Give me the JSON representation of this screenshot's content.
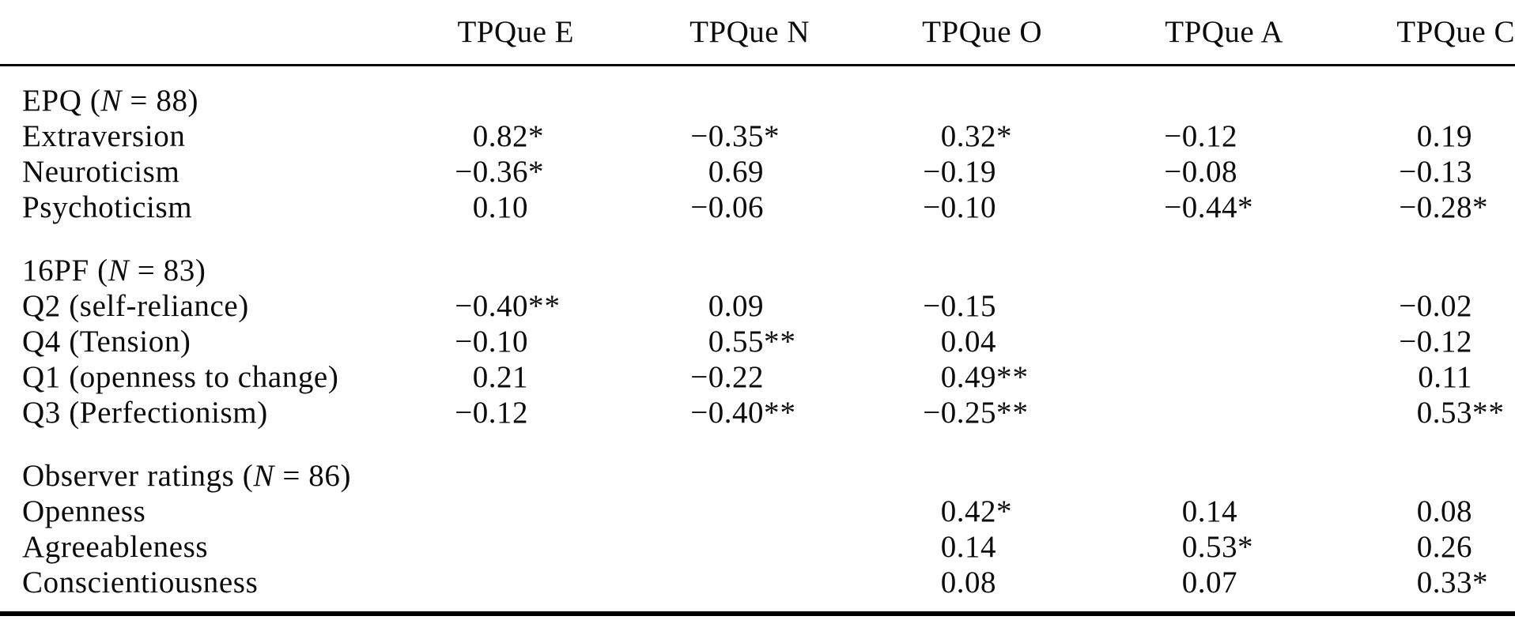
{
  "table": {
    "columns": [
      {
        "label": "TPQue E"
      },
      {
        "label": "TPQue N"
      },
      {
        "label": "TPQue O"
      },
      {
        "label": "TPQue A"
      },
      {
        "label": "TPQue C"
      }
    ],
    "sections": [
      {
        "header_prefix": "EPQ (",
        "header_italic": "N",
        "header_suffix": " = 88)",
        "rows": [
          {
            "label": "Extraversion",
            "values": [
              "0.82*",
              "−0.35*",
              "0.32*",
              "−0.12",
              "0.19"
            ]
          },
          {
            "label": "Neuroticism",
            "values": [
              "−0.36*",
              "0.69",
              "−0.19",
              "−0.08",
              "−0.13"
            ]
          },
          {
            "label": "Psychoticism",
            "values": [
              "0.10",
              "−0.06",
              "−0.10",
              "−0.44*",
              "−0.28*"
            ]
          }
        ]
      },
      {
        "header_prefix": "16PF (",
        "header_italic": "N",
        "header_suffix": " = 83)",
        "rows": [
          {
            "label": "Q2 (self-reliance)",
            "values": [
              "−0.40**",
              "0.09",
              "−0.15",
              "",
              "−0.02"
            ]
          },
          {
            "label": "Q4 (Tension)",
            "values": [
              "−0.10",
              "0.55**",
              "0.04",
              "",
              "−0.12"
            ]
          },
          {
            "label": "Q1 (openness to change)",
            "values": [
              "0.21",
              "−0.22",
              "0.49**",
              "",
              "0.11"
            ]
          },
          {
            "label": "Q3 (Perfectionism)",
            "values": [
              "−0.12",
              "−0.40**",
              "−0.25**",
              "",
              "0.53**"
            ]
          }
        ]
      },
      {
        "header_prefix": "Observer ratings (",
        "header_italic": "N",
        "header_suffix": " = 86)",
        "rows": [
          {
            "label": "Openness",
            "values": [
              "",
              "",
              "0.42*",
              "0.14",
              "0.08"
            ]
          },
          {
            "label": "Agreeableness",
            "values": [
              "",
              "",
              "0.14",
              "0.53*",
              "0.26"
            ]
          },
          {
            "label": "Conscientiousness",
            "values": [
              "",
              "",
              "0.08",
              "0.07",
              "0.33*"
            ]
          }
        ]
      }
    ],
    "section_gaps": [
      22,
      35,
      35
    ],
    "bottom_gap": 17
  },
  "colors": {
    "text": "#0c0c0c",
    "rule": "#000000",
    "background": "#ffffff"
  }
}
